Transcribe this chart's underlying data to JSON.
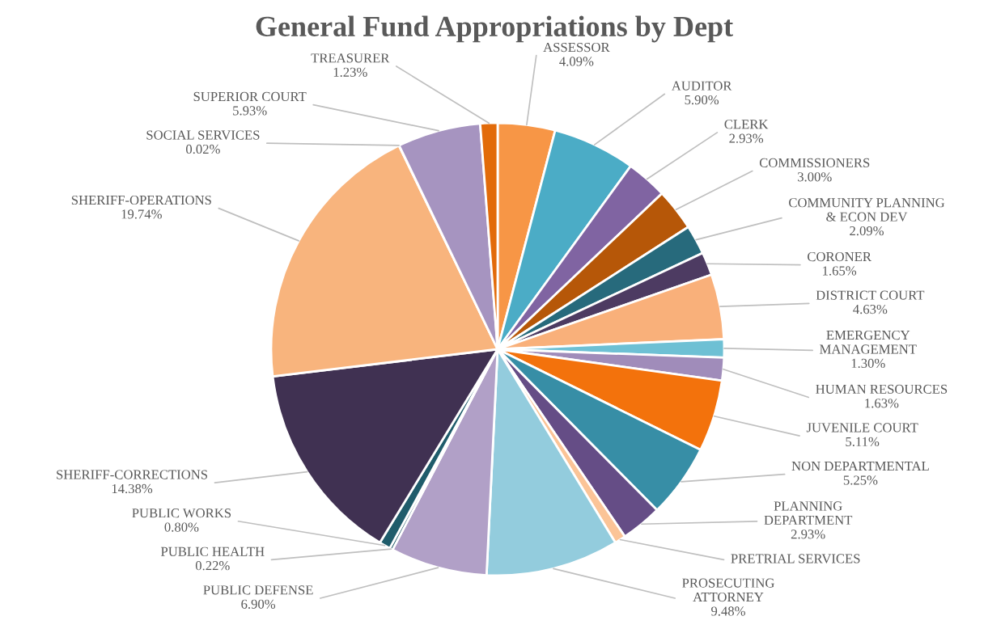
{
  "chart_data": {
    "type": "pie",
    "title": "General Fund Appropriations by Dept",
    "categories": [
      "ASSESSOR",
      "AUDITOR",
      "CLERK",
      "COMMISSIONERS",
      "COMMUNITY PLANNING & ECON DEV",
      "CORONER",
      "DISTRICT COURT",
      "EMERGENCY MANAGEMENT",
      "HUMAN RESOURCES",
      "JUVENILE COURT",
      "NON DEPARTMENTAL",
      "PLANNING DEPARTMENT",
      "PRETRIAL SERVICES",
      "PROSECUTING ATTORNEY",
      "PUBLIC DEFENSE",
      "PUBLIC HEALTH",
      "PUBLIC WORKS",
      "SHERIFF-CORRECTIONS",
      "SHERIFF-OPERATIONS",
      "SOCIAL SERVICES",
      "SUPERIOR COURT",
      "TREASURER"
    ],
    "values": [
      4.09,
      5.9,
      2.93,
      3.0,
      2.09,
      1.65,
      4.63,
      1.3,
      1.63,
      5.11,
      5.25,
      2.93,
      0.79,
      9.48,
      6.9,
      0.22,
      0.8,
      14.38,
      19.74,
      0.02,
      5.93,
      1.23
    ],
    "value_labels": [
      "4.09%",
      "5.90%",
      "2.93%",
      "3.00%",
      "2.09%",
      "1.65%",
      "4.63%",
      "1.30%",
      "1.63%",
      "5.11%",
      "5.25%",
      "2.93%",
      null,
      "9.48%",
      "6.90%",
      "0.22%",
      "0.80%",
      "14.38%",
      "19.74%",
      "0.02%",
      "5.93%",
      "1.23%"
    ],
    "colors": [
      "#f79646",
      "#4bacc6",
      "#8064a2",
      "#b65708",
      "#276a7c",
      "#4d3b62",
      "#f9b07a",
      "#6ec0d4",
      "#a08cba",
      "#f3720c",
      "#378ea6",
      "#654d86",
      "#fbc497",
      "#93ccdd",
      "#b1a0c7",
      "#215968",
      "#1f5c6b",
      "#403152",
      "#f8b47d",
      "#9bbb59",
      "#a694c0",
      "#e26b0a"
    ],
    "legend": false
  }
}
